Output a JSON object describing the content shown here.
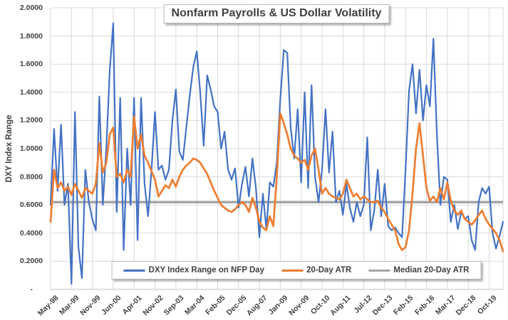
{
  "chart_data": {
    "type": "line",
    "title": "Nonfarm Payrolls & US Dollar Volatility",
    "xlabel": "",
    "ylabel": "DXY Index Range",
    "ylim": [
      0,
      2.0
    ],
    "y_tick_labels": [
      "2.0000",
      "1.8000",
      "1.6000",
      "1.4000",
      "1.2000",
      "1.0000",
      "0.8000",
      "0.6000",
      "0.4000",
      "0.2000",
      "-"
    ],
    "x_tick_labels": [
      "May-98",
      "Mar-99",
      "Nov-99",
      "Jun-00",
      "Apr-01",
      "Nov-02",
      "Sep-03",
      "Mar-04",
      "Feb-05",
      "Dec-05",
      "Aug-07",
      "Jan-09",
      "Nov-09",
      "Oct-10",
      "Aug-11",
      "Jul-12",
      "Dec-13",
      "Feb-15",
      "Feb-16",
      "Mar-17",
      "Dec-18",
      "Oct-19"
    ],
    "points_per_tick": 6,
    "grid": true,
    "legend_position": "bottom-inside",
    "colors": {
      "grid": "#D9D9D9",
      "axis_line": "#BFBFBF",
      "text": "#404040"
    },
    "series": [
      {
        "name": "DXY Index Range on NFP Day",
        "color": "#4472C4",
        "stroke_width": 2.2,
        "values": [
          0.6,
          1.14,
          0.7,
          1.17,
          0.6,
          0.75,
          0.04,
          1.26,
          0.3,
          0.08,
          0.85,
          0.62,
          0.5,
          0.42,
          1.37,
          0.6,
          1.0,
          1.55,
          1.89,
          0.55,
          1.36,
          0.28,
          1.0,
          0.6,
          1.36,
          0.35,
          1.36,
          0.75,
          0.52,
          0.85,
          1.26,
          0.85,
          0.88,
          0.78,
          0.85,
          1.2,
          1.42,
          0.98,
          0.92,
          1.15,
          1.38,
          1.58,
          1.69,
          1.4,
          1.02,
          1.52,
          1.42,
          1.3,
          1.26,
          1.0,
          1.12,
          0.85,
          0.78,
          0.86,
          0.58,
          0.75,
          0.87,
          0.66,
          0.93,
          0.72,
          0.37,
          0.68,
          0.43,
          0.76,
          0.73,
          0.9,
          1.35,
          1.7,
          1.68,
          1.15,
          0.93,
          1.28,
          0.76,
          1.4,
          0.72,
          1.45,
          0.8,
          0.62,
          0.85,
          1.28,
          0.83,
          1.12,
          0.62,
          0.7,
          0.53,
          0.75,
          0.58,
          0.48,
          0.62,
          0.52,
          0.6,
          1.08,
          0.42,
          0.56,
          0.85,
          0.52,
          0.75,
          0.45,
          0.42,
          0.44,
          0.4,
          0.37,
          0.85,
          1.41,
          1.6,
          1.25,
          1.56,
          1.2,
          1.45,
          1.3,
          1.78,
          1.1,
          0.6,
          0.8,
          0.78,
          0.48,
          0.6,
          0.43,
          0.55,
          0.5,
          0.52,
          0.35,
          0.28,
          0.62,
          0.72,
          0.68,
          0.73,
          0.4,
          0.29,
          0.38,
          0.48
        ]
      },
      {
        "name": "20-Day ATR",
        "color": "#ED7D31",
        "stroke_width": 2.7,
        "values": [
          0.48,
          0.85,
          0.72,
          0.76,
          0.7,
          0.73,
          0.67,
          0.75,
          0.7,
          0.65,
          0.72,
          0.7,
          0.68,
          0.75,
          1.04,
          0.83,
          0.9,
          1.1,
          1.15,
          0.8,
          0.82,
          0.76,
          0.85,
          0.8,
          1.23,
          1.0,
          1.1,
          0.95,
          0.9,
          0.84,
          0.78,
          0.66,
          0.7,
          0.74,
          0.72,
          0.78,
          0.73,
          0.8,
          0.85,
          0.88,
          0.9,
          0.93,
          0.92,
          0.9,
          0.86,
          0.82,
          0.76,
          0.7,
          0.65,
          0.6,
          0.58,
          0.56,
          0.55,
          0.57,
          0.6,
          0.62,
          0.6,
          0.55,
          0.65,
          0.58,
          0.48,
          0.44,
          0.42,
          0.52,
          0.45,
          0.8,
          1.25,
          1.18,
          1.1,
          1.0,
          0.95,
          0.93,
          0.9,
          0.92,
          0.85,
          0.95,
          1.0,
          0.85,
          0.68,
          0.72,
          0.68,
          0.66,
          0.65,
          0.64,
          0.68,
          0.78,
          0.72,
          0.66,
          0.68,
          0.64,
          0.66,
          0.64,
          0.62,
          0.62,
          0.63,
          0.58,
          0.55,
          0.5,
          0.46,
          0.42,
          0.32,
          0.28,
          0.3,
          0.42,
          0.68,
          1.0,
          1.18,
          0.95,
          0.72,
          0.63,
          0.66,
          0.62,
          0.72,
          0.64,
          0.76,
          0.63,
          0.56,
          0.53,
          0.56,
          0.5,
          0.48,
          0.46,
          0.49,
          0.53,
          0.56,
          0.5,
          0.46,
          0.43,
          0.4,
          0.35,
          0.27
        ]
      },
      {
        "name": "Median 20-Day ATR",
        "color": "#A5A5A5",
        "stroke_width": 3.4,
        "constant_value": 0.62
      }
    ]
  }
}
